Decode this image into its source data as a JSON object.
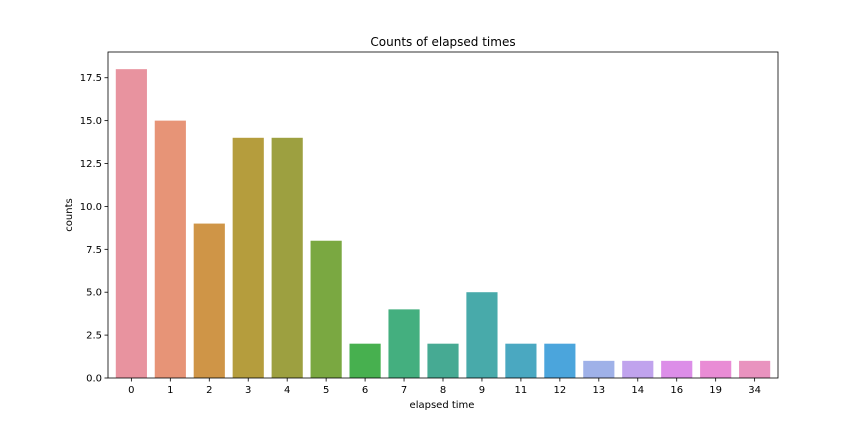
{
  "chart_data": {
    "type": "bar",
    "title": "Counts of elapsed times",
    "xlabel": "elapsed time",
    "ylabel": "counts",
    "categories": [
      "0",
      "1",
      "2",
      "3",
      "4",
      "5",
      "6",
      "7",
      "8",
      "9",
      "11",
      "12",
      "13",
      "14",
      "16",
      "19",
      "34"
    ],
    "values": [
      18,
      15,
      9,
      14,
      14,
      8,
      2,
      4,
      2,
      5,
      2,
      2,
      1,
      1,
      1,
      1,
      1
    ],
    "ylim": [
      0,
      19
    ],
    "yticks": [
      0,
      2.5,
      5,
      7.5,
      10,
      12.5,
      15,
      17.5
    ],
    "ytick_labels": [
      "0.0",
      "2.5",
      "5.0",
      "7.5",
      "10.0",
      "12.5",
      "15.0",
      "17.5"
    ],
    "grid": false,
    "colors": [
      "#e8939f",
      "#e79477",
      "#cf9547",
      "#b59d3d",
      "#9da040",
      "#7aa841",
      "#47b04f",
      "#44af7f",
      "#46aa93",
      "#48aaaa",
      "#4aa8c1",
      "#4ba5dc",
      "#9fb1e8",
      "#c0a3ed",
      "#dc8ee8",
      "#e98cd5",
      "#e993bf"
    ]
  }
}
